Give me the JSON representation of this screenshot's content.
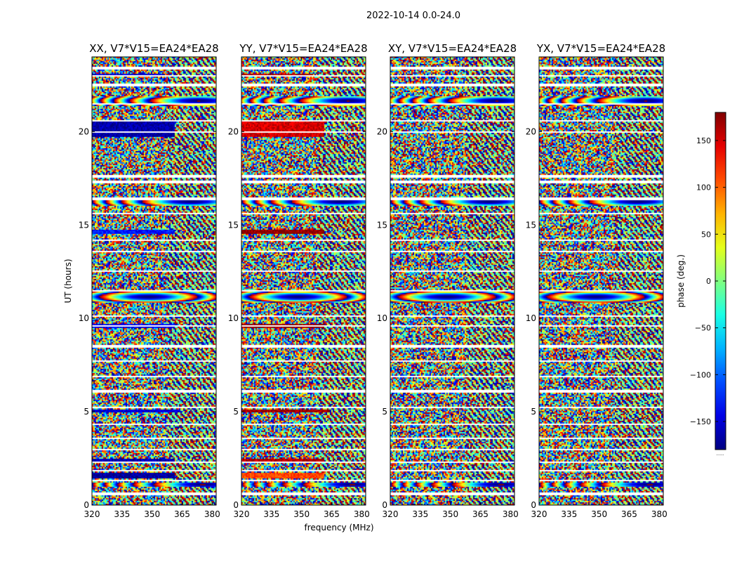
{
  "figure": {
    "title": "2022-10-14 0.0-24.0",
    "xlabel": "frequency (MHz)",
    "ylabel": "UT (hours)",
    "colorbar_label": "phase (deg.)",
    "colorbar_extra": "......"
  },
  "chart_data": {
    "type": "heatmap",
    "title": "2022-10-14 0.0-24.0",
    "xlabel": "frequency (MHz)",
    "ylabel": "UT (hours)",
    "xlim": [
      320,
      382
    ],
    "ylim": [
      0,
      24
    ],
    "xticks": [
      320,
      335,
      350,
      365,
      380
    ],
    "yticks": [
      0,
      5,
      10,
      15,
      20
    ],
    "grid": false,
    "colorbar": {
      "label": "phase (deg.)",
      "range": [
        -180,
        180
      ],
      "ticks": [
        -150,
        -100,
        -50,
        0,
        50,
        100,
        150
      ],
      "colormap": "jet"
    },
    "panels": [
      {
        "title": "XX, V7*V15=EA24*EA28",
        "polarization": "XX"
      },
      {
        "title": "YY, V7*V15=EA24*EA28",
        "polarization": "YY"
      },
      {
        "title": "XY, V7*V15=EA24*EA28",
        "polarization": "XY"
      },
      {
        "title": "YX, V7*V15=EA24*EA28",
        "polarization": "YX"
      }
    ],
    "gap_rows_ut": [
      0.6,
      1.3,
      1.85,
      2.3,
      3.0,
      3.6,
      4.3,
      5.2,
      6.1,
      6.9,
      7.7,
      8.5,
      9.6,
      10.1,
      11.5,
      12.5,
      13.6,
      14.2,
      15.6,
      16.4,
      17.3,
      17.6,
      20.0,
      20.6,
      21.5,
      22.5,
      23.0,
      23.4
    ],
    "strong_phase_bands": [
      {
        "ut": [
          1.4,
          1.7
        ],
        "freq_max": 361,
        "XX": -170,
        "YY": 110
      },
      {
        "ut": [
          2.3,
          2.45
        ],
        "freq_max": 361,
        "XX": -160,
        "YY": 160
      },
      {
        "ut": [
          4.95,
          5.15
        ],
        "freq_max": 364,
        "XX": -150,
        "YY": 170
      },
      {
        "ut": [
          9.5,
          9.7
        ],
        "freq_max": 361,
        "XX": -140,
        "YY": 175
      },
      {
        "ut": [
          14.5,
          14.75
        ],
        "freq_max": 361,
        "XX": -130,
        "YY": 175
      },
      {
        "ut": [
          19.7,
          20.6
        ],
        "freq_max": 361,
        "XX": -165,
        "YY": 150
      },
      {
        "ut": [
          22.95,
          23.1
        ],
        "freq_max": 356,
        "XX": -150,
        "YY": 165
      }
    ],
    "fringe_bands_ut": [
      {
        "ut": [
          10.8,
          11.5
        ],
        "center_freq": 350
      },
      {
        "ut": [
          16.0,
          16.5
        ],
        "center_freq": 371
      },
      {
        "ut": [
          21.4,
          21.9
        ],
        "center_freq": 375
      },
      {
        "ut": [
          1.0,
          1.2
        ],
        "center_freq": 377
      }
    ],
    "colors": {
      "gap": "#ffffff",
      "axes": "#000000"
    }
  }
}
